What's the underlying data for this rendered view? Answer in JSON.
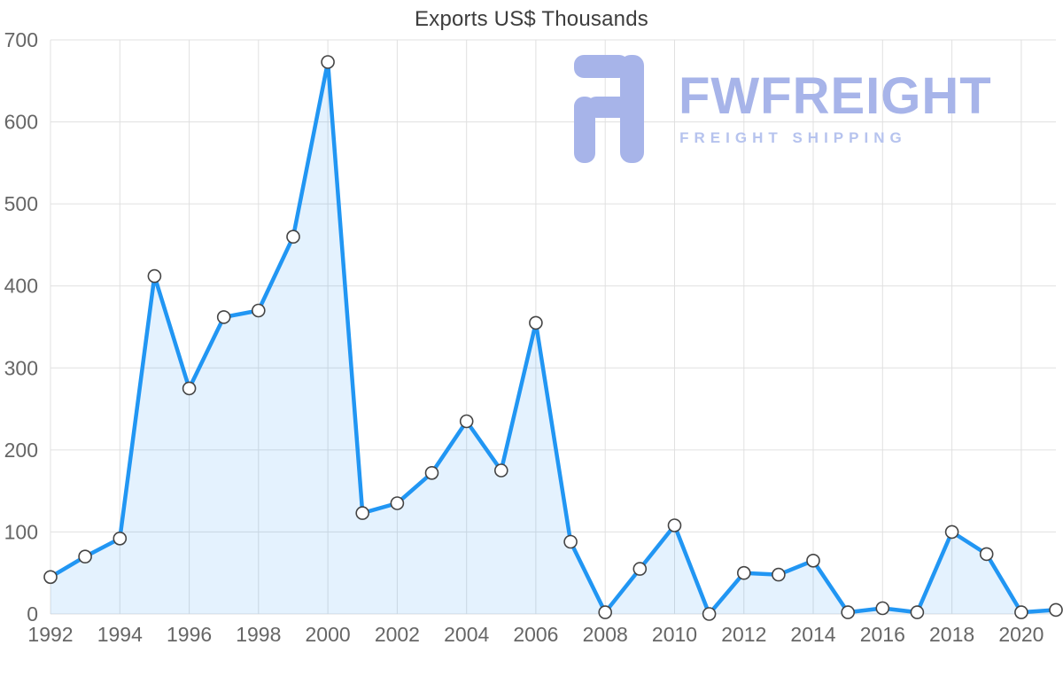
{
  "page": {
    "title": "Exports US$ Thousands"
  },
  "watermark": {
    "brand": "FWFREIGHT",
    "tagline": "FREIGHT SHIPPING",
    "brand_color": "#a7b4e9",
    "tagline_color": "#b6c3ee"
  },
  "chart_data": {
    "type": "area",
    "title": "Exports US$ Thousands",
    "x": [
      1992,
      1993,
      1994,
      1995,
      1996,
      1997,
      1998,
      1999,
      2000,
      2001,
      2002,
      2003,
      2004,
      2005,
      2006,
      2007,
      2008,
      2009,
      2010,
      2011,
      2012,
      2013,
      2014,
      2015,
      2016,
      2017,
      2018,
      2019,
      2020,
      2021
    ],
    "values": [
      45,
      70,
      92,
      412,
      275,
      362,
      370,
      460,
      673,
      123,
      135,
      172,
      235,
      175,
      355,
      88,
      2,
      55,
      108,
      0,
      50,
      48,
      65,
      2,
      7,
      2,
      100,
      73,
      2,
      5
    ],
    "xticks": [
      1992,
      1994,
      1996,
      1998,
      2000,
      2002,
      2004,
      2006,
      2008,
      2010,
      2012,
      2014,
      2016,
      2018,
      2020
    ],
    "yticks": [
      0,
      100,
      200,
      300,
      400,
      500,
      600,
      700
    ],
    "xlim": [
      1992,
      2021
    ],
    "ylim": [
      0,
      700
    ],
    "xlabel": "",
    "ylabel": "",
    "grid": true,
    "legend": "none",
    "line_color": "#2196f3",
    "area_opacity": 0.12,
    "marker_fill": "#ffffff",
    "marker_stroke": "#444444",
    "grid_color": "#e0e0e0",
    "tick_color": "#666666"
  }
}
